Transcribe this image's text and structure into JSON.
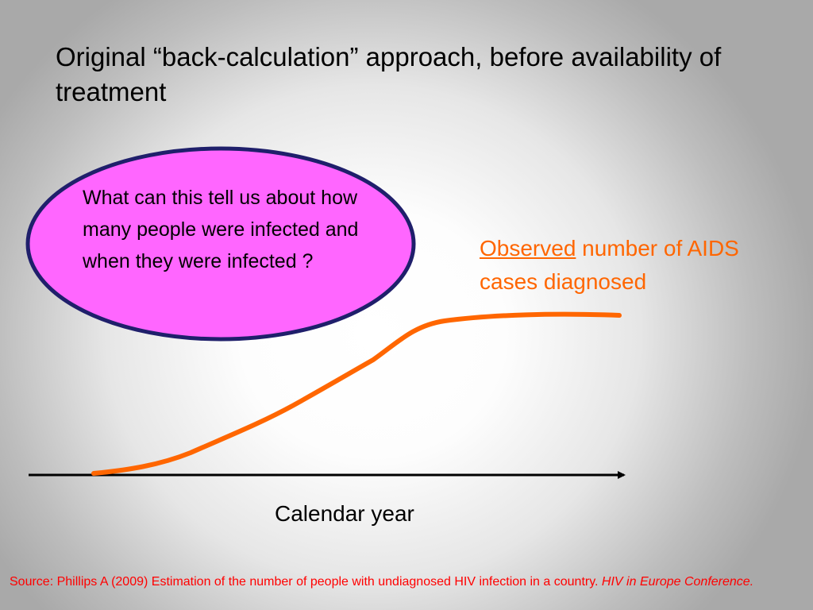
{
  "slide": {
    "title": "Original “back-calculation” approach, before availability of treatment",
    "bubble_text": "What can this tell us about how many people were infected and when they were infected ?",
    "curve_label": {
      "underlined_word": "Observed",
      "rest": " number of AIDS cases diagnosed"
    },
    "x_axis_label": "Calendar year",
    "source": {
      "prefix": "Source: Phillips A (2009) Estimation of the number of people with undiagnosed HIV infection in a country. ",
      "italic_suffix": "HIV in Europe Conference."
    }
  },
  "colors": {
    "bubble_fill": "#ff66ff",
    "bubble_border": "#1f1f6b",
    "curve": "#ff6600",
    "source_text": "#ff0000"
  }
}
